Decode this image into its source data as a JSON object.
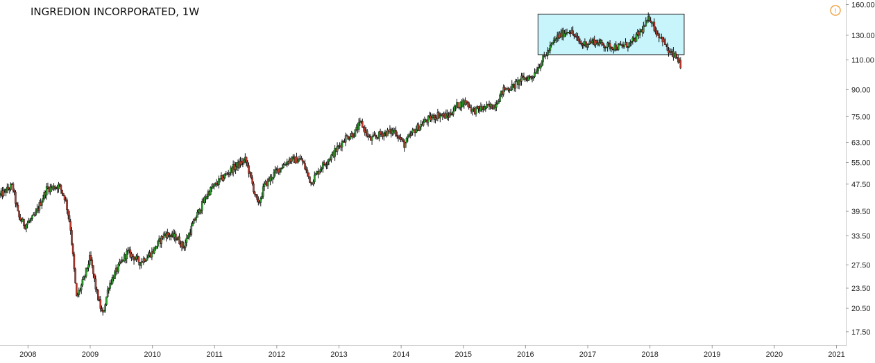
{
  "chart_data": {
    "type": "candlestick",
    "title": "INGREDION INCORPORATED, 1W",
    "scale": "log",
    "ylim": [
      16,
      165
    ],
    "xlim": [
      2007.55,
      2021.15
    ],
    "y_ticks": [
      17.5,
      20.5,
      23.5,
      27.5,
      33.5,
      39.5,
      47.5,
      55,
      63,
      75,
      90,
      110,
      130,
      160
    ],
    "y_tick_labels": [
      "17.50",
      "20.50",
      "23.50",
      "27.50",
      "33.50",
      "39.50",
      "47.50",
      "55.00",
      "63.00",
      "75.00",
      "90.00",
      "110.00",
      "130.00",
      "160.00"
    ],
    "x_ticks": [
      2008,
      2009,
      2010,
      2011,
      2012,
      2013,
      2014,
      2015,
      2016,
      2017,
      2018,
      2019,
      2020,
      2021
    ],
    "x_tick_labels": [
      "2008",
      "2009",
      "2010",
      "2011",
      "2012",
      "2013",
      "2014",
      "2015",
      "2016",
      "2017",
      "2018",
      "2019",
      "2020",
      "2021"
    ],
    "up_color": "#2ca02c",
    "down_color": "#c0392b",
    "wick_color": "#111111",
    "price_path": [
      [
        2007.55,
        44
      ],
      [
        2007.75,
        47
      ],
      [
        2007.85,
        38
      ],
      [
        2007.95,
        36
      ],
      [
        2008.1,
        38
      ],
      [
        2008.3,
        46
      ],
      [
        2008.5,
        47
      ],
      [
        2008.6,
        43
      ],
      [
        2008.68,
        36
      ],
      [
        2008.78,
        22
      ],
      [
        2008.9,
        25
      ],
      [
        2009.0,
        29
      ],
      [
        2009.1,
        23
      ],
      [
        2009.2,
        19.5
      ],
      [
        2009.3,
        24
      ],
      [
        2009.45,
        27
      ],
      [
        2009.6,
        30
      ],
      [
        2009.8,
        28
      ],
      [
        2010.0,
        30
      ],
      [
        2010.2,
        34
      ],
      [
        2010.4,
        33
      ],
      [
        2010.5,
        31
      ],
      [
        2010.7,
        38
      ],
      [
        2010.9,
        45
      ],
      [
        2011.1,
        49
      ],
      [
        2011.3,
        53
      ],
      [
        2011.5,
        56
      ],
      [
        2011.55,
        52
      ],
      [
        2011.7,
        41
      ],
      [
        2011.8,
        47
      ],
      [
        2012.0,
        52
      ],
      [
        2012.2,
        56
      ],
      [
        2012.4,
        56
      ],
      [
        2012.55,
        48
      ],
      [
        2012.7,
        53
      ],
      [
        2012.9,
        58
      ],
      [
        2013.1,
        65
      ],
      [
        2013.25,
        67
      ],
      [
        2013.35,
        72
      ],
      [
        2013.5,
        64
      ],
      [
        2013.7,
        67
      ],
      [
        2013.9,
        68
      ],
      [
        2014.05,
        62
      ],
      [
        2014.2,
        68
      ],
      [
        2014.4,
        73
      ],
      [
        2014.6,
        76
      ],
      [
        2014.75,
        75
      ],
      [
        2014.9,
        81
      ],
      [
        2015.05,
        83
      ],
      [
        2015.15,
        78
      ],
      [
        2015.4,
        80
      ],
      [
        2015.5,
        81
      ],
      [
        2015.65,
        90
      ],
      [
        2015.8,
        92
      ],
      [
        2015.95,
        97
      ],
      [
        2016.1,
        98
      ],
      [
        2016.3,
        112
      ],
      [
        2016.5,
        128
      ],
      [
        2016.7,
        135
      ],
      [
        2016.9,
        122
      ],
      [
        2017.1,
        125
      ],
      [
        2017.3,
        121
      ],
      [
        2017.5,
        120
      ],
      [
        2017.7,
        123
      ],
      [
        2017.9,
        137
      ],
      [
        2018.0,
        147
      ],
      [
        2018.1,
        133
      ],
      [
        2018.2,
        127
      ],
      [
        2018.3,
        116
      ],
      [
        2018.45,
        111
      ],
      [
        2018.5,
        103
      ]
    ],
    "annotations": [
      {
        "type": "rectangle",
        "x0": 2016.2,
        "x1": 2018.55,
        "y0": 114,
        "y1": 150,
        "fill": "#c8f4fb",
        "stroke": "#2a2a2a"
      }
    ],
    "grid": false,
    "legend": "none"
  },
  "header": {
    "title": "INGREDION INCORPORATED, 1W",
    "alert_icon": "warning-circle-icon",
    "alert_color": "#f0a040",
    "alert_glyph": "!"
  }
}
